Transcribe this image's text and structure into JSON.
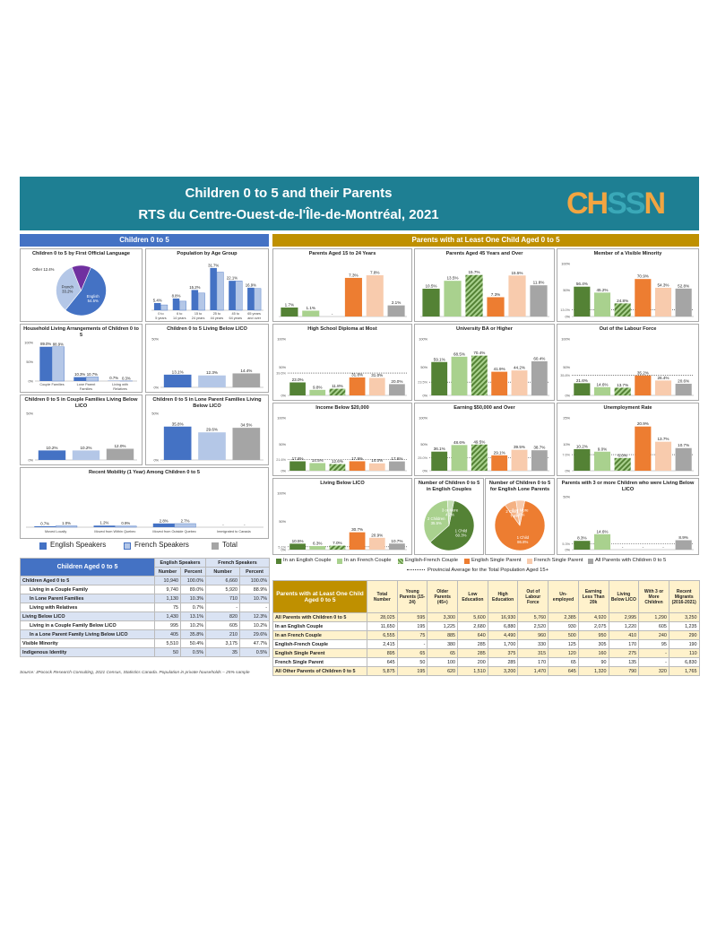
{
  "header": {
    "title1": "Children 0 to 5 and their Parents",
    "title2": "RTS du Centre-Ouest-de-l'Île-de-Montréal, 2021",
    "logo": "CHSSN"
  },
  "colors": {
    "teal": "#1e7f93",
    "blue": "#4472c4",
    "lightblue": "#b4c7e7",
    "gray": "#a5a5a5",
    "darkgreen": "#548235",
    "lightgreen": "#a9d18e",
    "orange": "#ed7d31",
    "peach": "#f8cbad",
    "gold": "#bf9000",
    "navy": "#2f4a8c",
    "purple": "#7030a0"
  },
  "left_section": {
    "title": "Children 0 to 5"
  },
  "right_section": {
    "title": "Parents with at Least One Child Aged 0 to 5"
  },
  "lang_legend": {
    "items": [
      "English Speakers",
      "French Speakers",
      "Total"
    ]
  },
  "parent_legend": {
    "items": [
      "In an English Couple",
      "In an French Couple",
      "English-French Couple",
      "English Single Parent",
      "French Single Parent",
      "All Parents with Children 0 to 5"
    ],
    "avg": "Provincial Average for the Total Population Aged 15+"
  },
  "chart_data": [
    {
      "id": "lang",
      "type": "pie",
      "title": "Children 0 to 5 by First Official Language",
      "slices": [
        {
          "name": "English",
          "value": 54.5
        },
        {
          "name": "French",
          "value": 33.2
        },
        {
          "name": "Other",
          "value": 12.4
        }
      ],
      "labels": [
        "English 54.5%",
        "French 33.2%",
        "Other 12.4%"
      ]
    },
    {
      "id": "age",
      "type": "bar",
      "title": "Population by Age Group",
      "categories": [
        "0 to 5 years",
        "6 to 14 years",
        "15 to 24 years",
        "25 to 44 years",
        "45 to 64 years",
        "65 years and over"
      ],
      "series": [
        {
          "name": "English Speakers",
          "values": [
            5.4,
            8.8,
            15.2,
            31.7,
            22.1,
            16.9
          ]
        },
        {
          "name": "French Speakers",
          "values": [
            4.0,
            6.8,
            12.9,
            28.6,
            22.0,
            16.3
          ]
        }
      ],
      "labels": [
        "5.4%",
        "8.8%",
        "15.2%",
        "31.7%",
        "22.1%",
        "16.9%"
      ]
    },
    {
      "id": "living",
      "type": "bar",
      "title": "Household Living Arrangements of Children 0 to 5",
      "categories": [
        "Couple Families",
        "Lone Parent Families",
        "Living with Relatives"
      ],
      "series": [
        {
          "name": "English Speakers",
          "values": [
            89.0,
            10.3,
            0.7
          ]
        },
        {
          "name": "French Speakers",
          "values": [
            88.9,
            10.7,
            0.3
          ]
        }
      ],
      "labels": [
        "89.0%",
        "88.9%",
        "10.3%",
        "10.7%",
        "0.7%",
        "0.3%"
      ],
      "ylim": [
        0,
        100
      ],
      "yticks": [
        "100%",
        "50%",
        "0%"
      ]
    },
    {
      "id": "lico",
      "type": "bar",
      "title": "Children 0 to 5 Living Below LICO",
      "categories": [
        "English",
        "French",
        "Total"
      ],
      "values": [
        13.1,
        12.3,
        14.4
      ],
      "labels": [
        "13.1%",
        "12.3%",
        "14.4%"
      ],
      "ylim": [
        0,
        50
      ],
      "yticks": [
        "50%",
        "0%"
      ]
    },
    {
      "id": "couplelico",
      "type": "bar",
      "title": "Children 0 to 5 in Couple Families Living Below LICO",
      "categories": [
        "English",
        "French",
        "Total"
      ],
      "values": [
        10.2,
        10.2,
        12.0
      ],
      "labels": [
        "10.2%",
        "10.2%",
        "12.0%"
      ],
      "ylim": [
        0,
        50
      ],
      "yticks": [
        "50%",
        "0%"
      ]
    },
    {
      "id": "lonelico",
      "type": "bar",
      "title": "Children 0 to 5 in Lone Parent Families Living Below LICO",
      "categories": [
        "English",
        "French",
        "Total"
      ],
      "values": [
        35.8,
        29.6,
        34.5
      ],
      "labels": [
        "35.8%",
        "29.6%",
        "34.5%"
      ],
      "ylim": [
        0,
        50
      ],
      "yticks": [
        "50%",
        "0%"
      ]
    },
    {
      "id": "mobility",
      "type": "bar",
      "title": "Recent Mobility (1 Year) Among Children 0 to 5",
      "categories": [
        "Moved Locally",
        "Moved from Within Quebec",
        "Moved from Outside Quebec",
        "Immigrated to Canada"
      ],
      "series": [
        {
          "name": "English Speakers",
          "values": [
            0.7,
            1.2,
            2.8,
            0
          ]
        },
        {
          "name": "French Speakers",
          "values": [
            1.0,
            0.9,
            2.7,
            0
          ]
        }
      ],
      "labels": [
        "0.7%",
        "1.0%",
        "1.2%",
        "0.9%",
        "2.8%",
        "2.7%",
        "-",
        "-"
      ]
    },
    {
      "id": "p1524",
      "type": "bar",
      "title": "Parents Aged 15 to 24 Years",
      "values": [
        1.7,
        1.1,
        0,
        7.3,
        7.8,
        2.1
      ],
      "labels": [
        "1.7%",
        "1.1%",
        "-",
        "7.3%",
        "7.8%",
        "2.1%"
      ],
      "ymax": 10
    },
    {
      "id": "p45",
      "type": "bar",
      "title": "Parents Aged 45 Years and Over",
      "values": [
        10.5,
        13.5,
        15.7,
        7.3,
        15.5,
        11.8
      ],
      "labels": [
        "10.5%",
        "13.5%",
        "15.7%",
        "7.3%",
        "15.5%",
        "11.8%"
      ],
      "ymax": 20
    },
    {
      "id": "vismin",
      "type": "bar",
      "title": "Member of a Visible Minority",
      "values": [
        56.4,
        45.2,
        24.8,
        70.9,
        54.3,
        52.8
      ],
      "labels": [
        "56.4%",
        "45.2%",
        "24.8%",
        "70.9%",
        "54.3%",
        "52.8%"
      ],
      "ylim": [
        0,
        100
      ],
      "yticks": [
        "100%",
        "50%",
        "0%"
      ],
      "avg": 13.0,
      "avglabel": "13.0%"
    },
    {
      "id": "hs",
      "type": "bar",
      "title": "High School Diploma at Most",
      "values": [
        23.0,
        9.8,
        11.8,
        31.8,
        31.0,
        20.0
      ],
      "labels": [
        "23.0%",
        "9.8%",
        "11.8%",
        "31.8%",
        "31.0%",
        "20.0%"
      ],
      "ylim": [
        0,
        100
      ],
      "yticks": [
        "100%",
        "50%",
        "0%"
      ],
      "avg": 39.6,
      "avglabel": "39.6%"
    },
    {
      "id": "univ",
      "type": "bar",
      "title": "University BA or Higher",
      "values": [
        59.1,
        68.5,
        70.4,
        41.9,
        44.2,
        60.4
      ],
      "labels": [
        "59.1%",
        "68.5%",
        "70.4%",
        "41.9%",
        "44.2%",
        "60.4%"
      ],
      "ylim": [
        0,
        100
      ],
      "yticks": [
        "100%",
        "50%",
        "0%"
      ],
      "avg": 23.5,
      "avglabel": "23.5%"
    },
    {
      "id": "olf",
      "type": "bar",
      "title": "Out of the Labour Force",
      "values": [
        21.6,
        14.6,
        13.7,
        35.2,
        26.4,
        20.6
      ],
      "labels": [
        "21.6%",
        "14.6%",
        "13.7%",
        "35.2%",
        "26.4%",
        "20.6%"
      ],
      "ylim": [
        0,
        100
      ],
      "yticks": [
        "100%",
        "50%",
        "0%"
      ],
      "avg": 35.8,
      "avglabel": "35.8%"
    },
    {
      "id": "inc20",
      "type": "bar",
      "title": "Income Below $20,000",
      "values": [
        17.8,
        14.5,
        12.6,
        17.9,
        14.0,
        17.6
      ],
      "labels": [
        "17.8%",
        "14.5%",
        "12.6%",
        "17.9%",
        "14.0%",
        "17.6%"
      ],
      "ylim": [
        0,
        100
      ],
      "yticks": [
        "100%",
        "50%",
        "0%"
      ],
      "avg": 21.6,
      "avglabel": "21.6%"
    },
    {
      "id": "earn50",
      "type": "bar",
      "title": "Earning $50,000 and Over",
      "values": [
        36.1,
        48.6,
        49.5,
        29.1,
        39.5,
        38.7
      ],
      "labels": [
        "36.1%",
        "48.6%",
        "49.5%",
        "29.1%",
        "39.5%",
        "38.7%"
      ],
      "ylim": [
        0,
        100
      ],
      "yticks": [
        "100%",
        "50%",
        "0%"
      ],
      "avg": 25.0,
      "avglabel": "25.0%"
    },
    {
      "id": "unemp",
      "type": "bar",
      "title": "Unemployment Rate",
      "values": [
        10.2,
        9.0,
        6.0,
        20.9,
        13.7,
        10.7
      ],
      "labels": [
        "10.2%",
        "9.0%",
        "6.0%",
        "20.9%",
        "13.7%",
        "10.7%"
      ],
      "ylim": [
        0,
        25
      ],
      "yticks": [
        "25%",
        "10%",
        "0%"
      ],
      "avg": 7.6,
      "avglabel": "7.6%"
    },
    {
      "id": "plico",
      "type": "bar",
      "title": "Living Below LICO",
      "values": [
        10.5,
        6.3,
        7.0,
        30.7,
        20.9,
        10.7
      ],
      "labels": [
        "10.5%",
        "6.3%",
        "7.0%",
        "30.7%",
        "20.9%",
        "10.7%"
      ],
      "ylim": [
        0,
        100
      ],
      "yticks": [
        "100%",
        "50%",
        "0%"
      ],
      "avg": 5.1,
      "avglabel": "5.1%"
    },
    {
      "id": "engcouples",
      "type": "pie",
      "title": "Number of Children 0 to 5 in English Couples",
      "slices": [
        {
          "name": "1 Child",
          "value": 60.3
        },
        {
          "name": "2 Children",
          "value": 35.5
        },
        {
          "name": "3 or More",
          "value": 4.2
        }
      ],
      "labels": [
        "1 Child 60.3%",
        "2 Children 35.5%",
        "3 or More 4.2%"
      ]
    },
    {
      "id": "engsingle",
      "type": "pie",
      "title": "Number of Children 0 to 5 for English Lone Parents",
      "slices": [
        {
          "name": "1 Child",
          "value": 86.8
        },
        {
          "name": "2 Children",
          "value": 7.6
        },
        {
          "name": "3 or More",
          "value": 5.6
        }
      ],
      "labels": [
        "1 Child 86.8%",
        "2 Children 7.6%",
        "3 or More 5.6%"
      ]
    },
    {
      "id": "three",
      "type": "bar",
      "title": "Parents with 3 or more Children who were Living Below LICO",
      "values": [
        8.3,
        14.6,
        0,
        0,
        0,
        8.9
      ],
      "labels": [
        "8.3%",
        "14.6%",
        "-",
        "-",
        "-",
        "8.9%"
      ],
      "ylim": [
        0,
        50
      ],
      "yticks": [
        "50%",
        "0%"
      ],
      "avg": 5.3,
      "avglabel": "5.3%"
    }
  ],
  "children_table": {
    "title": "Children Aged 0 to 5",
    "groups": [
      "English Speakers",
      "French Speakers"
    ],
    "subheads": [
      "Number",
      "Percent",
      "Number",
      "Percent"
    ],
    "rows": [
      [
        "Children Aged 0 to 5",
        "10,940",
        "100.0%",
        "6,660",
        "100.0%"
      ],
      [
        "Living in a Couple Family",
        "9,740",
        "89.0%",
        "5,920",
        "88.9%"
      ],
      [
        "In Lone Parent Families",
        "1,130",
        "10.3%",
        "710",
        "10.7%"
      ],
      [
        "Living with Relatives",
        "75",
        "0.7%",
        "-",
        "-"
      ],
      [
        "Living Below LICO",
        "1,430",
        "13.1%",
        "820",
        "12.3%"
      ],
      [
        "Living in a Couple Family Below LICO",
        "995",
        "10.2%",
        "605",
        "10.2%"
      ],
      [
        "In a Lone Parent Family Living Below LICO",
        "405",
        "35.8%",
        "210",
        "29.6%"
      ],
      [
        "Visible Minority",
        "5,510",
        "50.4%",
        "3,175",
        "47.7%"
      ],
      [
        "Indigenous Identity",
        "50",
        "0.5%",
        "35",
        "0.5%"
      ]
    ]
  },
  "parents_table": {
    "title": "Parents with at Least One Child Aged 0 to 5",
    "columns": [
      "Total Number",
      "Young Parents (15-24)",
      "Older Parents (45+)",
      "Low Education",
      "High Education",
      "Out of Labour Force",
      "Un-employed",
      "Earning Less Than 20k",
      "Living Below LICO",
      "With 3 or More Children",
      "Recent Migrants (2016-2021)"
    ],
    "rows": [
      [
        "All Parents with Children 0 to 5",
        "28,025",
        "595",
        "3,300",
        "5,600",
        "16,930",
        "5,760",
        "2,385",
        "4,920",
        "2,995",
        "1,290",
        "3,250"
      ],
      [
        "In an English Couple",
        "11,650",
        "195",
        "1,225",
        "2,680",
        "6,880",
        "2,520",
        "930",
        "2,075",
        "1,220",
        "605",
        "1,235"
      ],
      [
        "In an French Couple",
        "6,555",
        "75",
        "885",
        "640",
        "4,490",
        "960",
        "500",
        "950",
        "410",
        "240",
        "290"
      ],
      [
        "English-French Couple",
        "2,415",
        "-",
        "380",
        "285",
        "1,700",
        "330",
        "125",
        "305",
        "170",
        "95",
        "190"
      ],
      [
        "English Single Parent",
        "895",
        "65",
        "65",
        "285",
        "375",
        "315",
        "120",
        "160",
        "275",
        "-",
        "110"
      ],
      [
        "French Single Parent",
        "645",
        "50",
        "100",
        "200",
        "285",
        "170",
        "65",
        "90",
        "135",
        "-",
        "6,830"
      ],
      [
        "All Other Parents of Children 0 to 5",
        "5,875",
        "195",
        "620",
        "1,510",
        "3,200",
        "1,470",
        "645",
        "1,320",
        "790",
        "320",
        "1,765"
      ]
    ]
  },
  "source": "Source: JPocock Research Consulting, 2021 Census, Statistics Canada. Population in private households – 25% sample"
}
